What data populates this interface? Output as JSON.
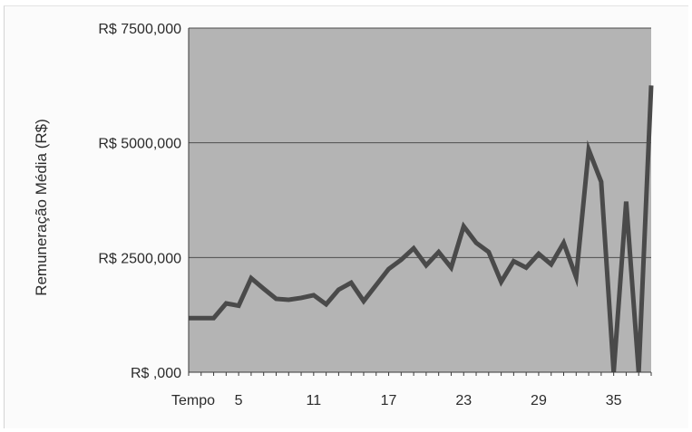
{
  "chart_data": {
    "type": "line",
    "title": "",
    "ylabel": "Remuneração Média (R$)",
    "xlabel": "Tempo",
    "ylim": [
      0,
      7500
    ],
    "yticks": [
      0,
      2500,
      5000,
      7500
    ],
    "yticklabels": [
      "R$ ,000",
      "R$ 2500,000",
      "R$ 5000,000",
      "R$ 7500,000"
    ],
    "xticks": [
      5,
      11,
      17,
      23,
      29,
      35
    ],
    "xticklabels": [
      "5",
      "11",
      "17",
      "23",
      "29",
      "35"
    ],
    "grid": "horizontal",
    "legend": "none",
    "colors": {
      "plot_bg": "#b4b4b4",
      "line": "#4a4a4a",
      "grid": "#4d4d4d"
    },
    "series": [
      {
        "x": [
          1,
          2,
          3,
          4,
          5,
          6,
          7,
          8,
          9,
          10,
          11,
          12,
          13,
          14,
          15,
          16,
          17,
          18,
          19,
          20,
          21,
          22,
          23,
          24,
          25,
          26,
          27,
          28,
          29,
          30,
          31,
          32,
          33,
          34,
          35,
          36,
          37,
          38
        ],
        "values": [
          1180,
          1180,
          1180,
          1500,
          1450,
          2050,
          1820,
          1600,
          1580,
          1620,
          1680,
          1480,
          1800,
          1950,
          1550,
          1900,
          2250,
          2450,
          2700,
          2330,
          2620,
          2280,
          3180,
          2820,
          2620,
          1970,
          2420,
          2280,
          2580,
          2350,
          2820,
          2070,
          4850,
          4150,
          0,
          3720,
          0,
          6250
        ]
      }
    ]
  }
}
